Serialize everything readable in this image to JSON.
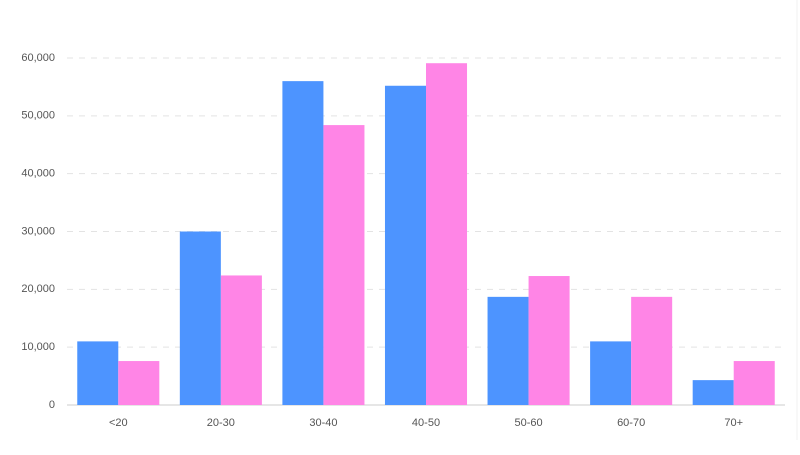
{
  "chart_data": {
    "type": "bar",
    "categories": [
      "<20",
      "20-30",
      "30-40",
      "40-50",
      "50-60",
      "60-70",
      "70+"
    ],
    "series": [
      {
        "color": "#4d94ff",
        "values": [
          11000,
          30000,
          56000,
          55200,
          18700,
          11000,
          4300
        ]
      },
      {
        "color": "#ff85e6",
        "values": [
          7600,
          22400,
          48400,
          59100,
          22300,
          18700,
          7600
        ]
      }
    ],
    "ylim": [
      0,
      60000
    ],
    "yticks": [
      0,
      {
        "value": 10000,
        "label": "10,000"
      },
      {
        "value": 20000,
        "label": "20,000"
      },
      {
        "value": 30000,
        "label": "30,000"
      },
      {
        "value": 40000,
        "label": "40,000"
      },
      {
        "value": 50000,
        "label": "50,000"
      },
      {
        "value": 60000,
        "label": "60,000"
      }
    ],
    "grid": true
  }
}
